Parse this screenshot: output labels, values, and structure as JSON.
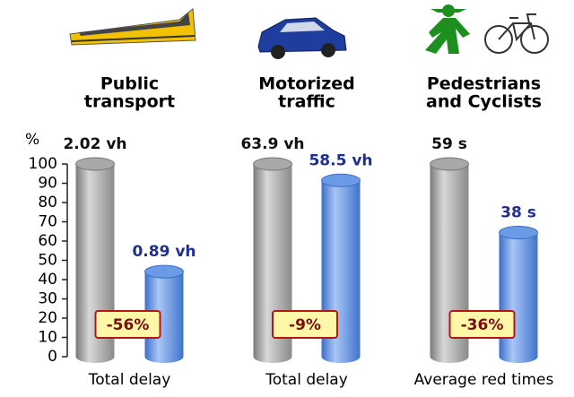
{
  "chart_data": {
    "type": "cylinder",
    "y_label": "%",
    "groups": [
      [
        "Public",
        "transport"
      ],
      [
        "Motorized",
        "traffic"
      ],
      [
        "Pedestrians",
        "and Cyclists"
      ]
    ],
    "categories": [
      "Total delay",
      "Total delay",
      "Average red times"
    ],
    "series": [
      {
        "color": "#9e9e9e",
        "text_color": "#111111",
        "values": [
          100,
          100,
          100
        ],
        "labels": [
          "2.02 vh",
          "63.9 vh",
          "59 s"
        ]
      },
      {
        "color": "#5b8fe0",
        "text_color": "#1f2f8f",
        "values": [
          44.1,
          91.5,
          64.4
        ],
        "labels": [
          "0.89 vh",
          "58.5 vh",
          "38 s"
        ]
      }
    ],
    "changes": [
      "-56%",
      "-9%",
      "-36%"
    ],
    "ylim": [
      0,
      100
    ],
    "yticks": [
      0,
      10,
      20,
      30,
      40,
      50,
      60,
      70,
      80,
      90,
      100
    ]
  }
}
